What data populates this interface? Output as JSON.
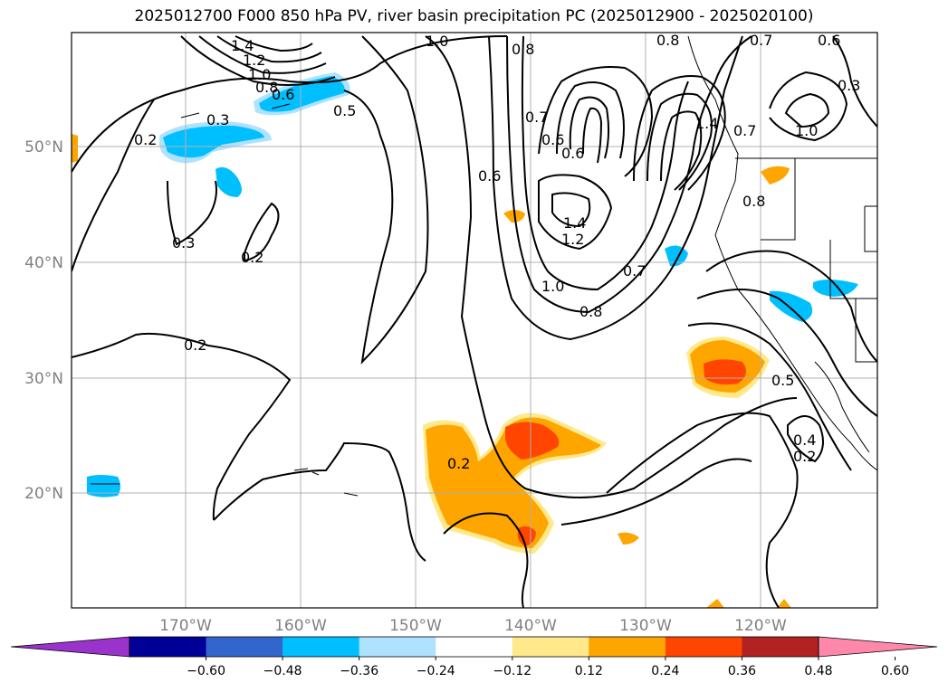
{
  "title": "2025012700 F000 850 hPa PV, river basin precipitation PC (2025012900 - 2025020100)",
  "lat_labels": [
    "50°N",
    "40°N",
    "30°N",
    "20°N"
  ],
  "lon_labels": [
    "170°W",
    "160°W",
    "150°W",
    "140°W",
    "130°W",
    "120°W"
  ],
  "colorbar": {
    "colors": [
      "#9933cc",
      "#000099",
      "#3366cc",
      "#00bfff",
      "#aee2ff",
      "#ffffff",
      "#ffe98a",
      "#ffa500",
      "#ff4500",
      "#b22222",
      "#ff88aa"
    ],
    "ticks": [
      "−0.60",
      "−0.48",
      "−0.36",
      "−0.24",
      "−0.12",
      "0.12",
      "0.24",
      "0.36",
      "0.48",
      "0.60"
    ]
  },
  "contour_labels": [
    "1.4",
    "1.2",
    "1.0",
    "0.8",
    "0.6",
    "0.5",
    "0.3",
    "0.2",
    "0.3",
    "0.2",
    "0.2",
    "1.0",
    "0.8",
    "0.6",
    "0.6",
    "0.7",
    "0.6",
    "1.4",
    "1.2",
    "1.0",
    "0.8",
    "0.7",
    "0.8",
    "1.4",
    "0.7",
    "0.8",
    "0.7",
    "0.6",
    "1.0",
    "0.3",
    "0.5",
    "0.4",
    "0.2",
    "0.2"
  ],
  "colors": {
    "positive_light": "#ffe98a",
    "positive_mid": "#ffa500",
    "positive_strong": "#ff4500",
    "negative": "#00bfff",
    "negative_light": "#aee2ff"
  }
}
